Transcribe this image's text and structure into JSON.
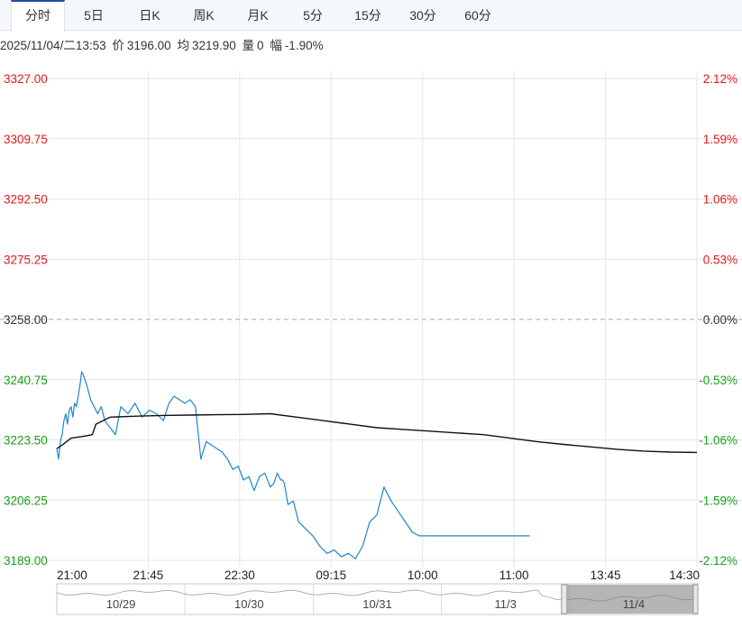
{
  "tabs": [
    {
      "label": "分时",
      "active": true
    },
    {
      "label": "5日",
      "active": false
    },
    {
      "label": "日K",
      "active": false
    },
    {
      "label": "周K",
      "active": false
    },
    {
      "label": "月K",
      "active": false
    },
    {
      "label": "5分",
      "active": false
    },
    {
      "label": "15分",
      "active": false
    },
    {
      "label": "30分",
      "active": false
    },
    {
      "label": "60分",
      "active": false
    }
  ],
  "info": {
    "datetime": "2025/11/04/二13:53",
    "price_label": "价",
    "price": "3196.00",
    "avg_label": "均",
    "avg": "3219.90",
    "vol_label": "量",
    "vol": "0",
    "chg_label": "幅",
    "chg": "-1.90%"
  },
  "colors": {
    "up": "#e0191b",
    "down": "#1a9e1a",
    "neutral": "#333333",
    "price_line": "#1f86c8",
    "avg_line": "#111111",
    "grid": "#e6e6e6"
  },
  "chart_data": {
    "type": "line",
    "title": "",
    "base_price": 3258.0,
    "ylim": [
      3189.0,
      3327.0
    ],
    "y_ticks_left": [
      "3327.00",
      "3309.75",
      "3292.50",
      "3275.25",
      "3258.00",
      "3240.75",
      "3223.50",
      "3206.25",
      "3189.00"
    ],
    "y_ticks_right": [
      "2.12%",
      "1.59%",
      "1.06%",
      "0.53%",
      "0.00%",
      "-0.53%",
      "-1.06%",
      "-1.59%",
      "-2.12%"
    ],
    "x_ticks": [
      "21:00",
      "21:45",
      "22:30",
      "09:15",
      "10:00",
      "11:00",
      "13:45",
      "14:30"
    ],
    "series": [
      {
        "key": "price",
        "x": [
          0,
          1,
          2,
          3,
          4,
          5,
          6,
          7,
          8,
          9,
          10,
          11,
          12,
          13,
          14,
          15,
          17,
          19,
          21,
          23,
          25,
          27,
          30,
          33,
          36,
          40,
          44,
          48,
          52,
          56,
          60,
          63,
          66,
          69,
          72,
          75,
          78,
          81,
          84,
          87,
          90,
          93,
          96,
          99,
          102,
          105,
          108,
          111,
          114,
          117,
          120,
          122,
          124,
          125,
          126,
          127,
          128,
          130,
          133,
          136,
          140,
          144,
          148,
          152,
          156,
          160,
          164,
          168,
          172,
          176,
          180,
          184,
          188,
          192,
          196,
          200,
          204,
          208,
          212,
          215,
          218,
          221,
          224,
          227,
          230,
          233,
          236,
          239,
          242,
          245,
          248,
          251,
          254,
          257,
          260,
          263,
          266
        ],
        "values": [
          3221,
          3218,
          3223,
          3225,
          3229,
          3231,
          3228,
          3232,
          3233,
          3230,
          3234,
          3233,
          3236,
          3239,
          3243,
          3242,
          3239,
          3235,
          3233,
          3231,
          3233,
          3229,
          3227,
          3225,
          3233,
          3231,
          3234,
          3230,
          3232,
          3231,
          3229,
          3234,
          3236,
          3235,
          3234,
          3235,
          3233,
          3218,
          3223,
          3222,
          3221,
          3220,
          3218,
          3215,
          3216,
          3212,
          3213,
          3209,
          3213,
          3214,
          3210,
          3211,
          3214,
          3213,
          3212,
          3212,
          3211,
          3205,
          3206,
          3200,
          3198,
          3196,
          3193,
          3191,
          3192,
          3190,
          3191,
          3189.5,
          3193,
          3200,
          3202,
          3210,
          3206,
          3203,
          3200,
          3197,
          3196,
          3196,
          3196,
          3196,
          3196,
          3196,
          3196,
          3196,
          3196,
          3196,
          3196,
          3196,
          3196,
          3196,
          3196,
          3196,
          3196,
          3196,
          3196,
          3196,
          3196
        ]
      },
      {
        "key": "average",
        "x": [
          0,
          3,
          8,
          15,
          20,
          22,
          30,
          45,
          60,
          75,
          90,
          105,
          120,
          135,
          150,
          165,
          180,
          195,
          210,
          225,
          240,
          255,
          270,
          285,
          300,
          315,
          330,
          345,
          360
        ],
        "values": [
          3221,
          3222,
          3224,
          3224.5,
          3225,
          3228,
          3230,
          3230.3,
          3230.5,
          3230.6,
          3230.7,
          3230.8,
          3231,
          3230,
          3229,
          3228,
          3227,
          3226.5,
          3226,
          3225.5,
          3225,
          3224,
          3223,
          3222.2,
          3221.5,
          3220.8,
          3220.3,
          3220,
          3219.9
        ]
      }
    ],
    "grid": true
  },
  "navigator": {
    "dates": [
      "10/29",
      "10/30",
      "10/31",
      "11/3",
      "11/4"
    ]
  }
}
